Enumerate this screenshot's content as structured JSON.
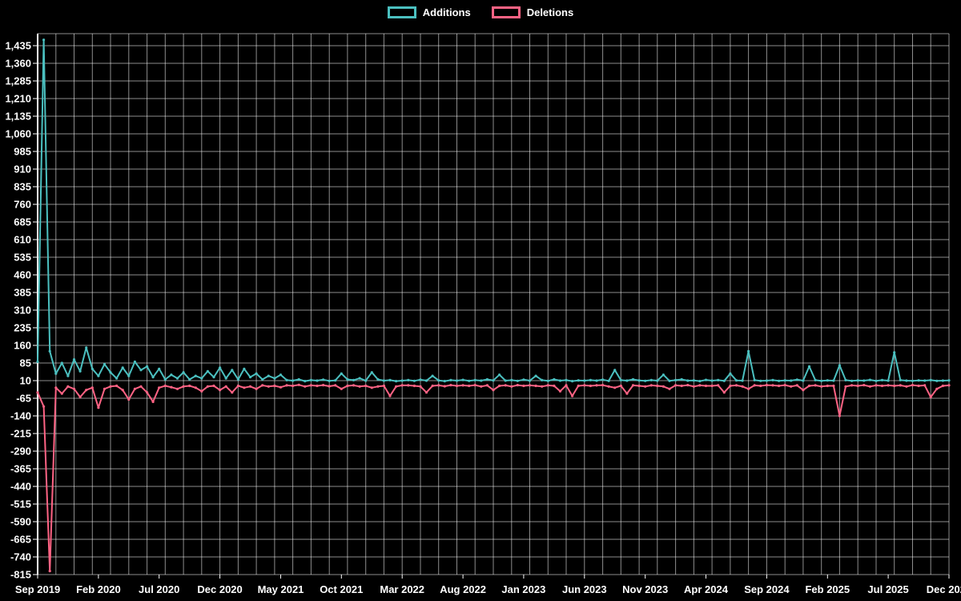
{
  "chart_data": {
    "type": "line",
    "title": "",
    "legend_position": "top",
    "background": "#000000",
    "text_color": "#ffffff",
    "grid": {
      "show": true,
      "color": "rgba(255,255,255,0.55)",
      "vline_step_months": 1.5
    },
    "x_axis": {
      "tick_labels": [
        "Sep 2019",
        "Feb 2020",
        "Jul 2020",
        "Dec 2020",
        "May 2021",
        "Oct 2021",
        "Mar 2022",
        "Aug 2022",
        "Jan 2023",
        "Jun 2023",
        "Nov 2023",
        "Apr 2024",
        "Sep 2024",
        "Feb 2025",
        "Jul 2025",
        "Dec 2025"
      ],
      "tick_spacing_months": 5
    },
    "y_axis": {
      "tick_values": [
        1435,
        1360,
        1285,
        1210,
        1135,
        1060,
        985,
        910,
        835,
        760,
        685,
        610,
        535,
        460,
        385,
        310,
        235,
        160,
        85,
        10,
        -65,
        -140,
        -215,
        -290,
        -365,
        -440,
        -515,
        -590,
        -665,
        -740,
        -815
      ],
      "tick_step": 75
    },
    "x_months": {
      "start": 0,
      "step_months": 0.5,
      "count": 151
    },
    "series": [
      {
        "name": "Additions",
        "color": "#4bc0c0",
        "values": [
          90,
          1460,
          135,
          40,
          85,
          30,
          100,
          50,
          150,
          60,
          30,
          80,
          45,
          20,
          65,
          30,
          90,
          55,
          70,
          25,
          60,
          15,
          35,
          20,
          45,
          15,
          30,
          20,
          50,
          25,
          65,
          20,
          55,
          15,
          60,
          25,
          40,
          15,
          30,
          20,
          35,
          12,
          10,
          15,
          8,
          12,
          10,
          14,
          9,
          11,
          40,
          15,
          12,
          20,
          10,
          45,
          15,
          10,
          12,
          8,
          10,
          12,
          9,
          14,
          10,
          30,
          11,
          8,
          12,
          10,
          13,
          9,
          12,
          10,
          15,
          11,
          35,
          10,
          12,
          9,
          14,
          10,
          30,
          12,
          9,
          15,
          10,
          12,
          8,
          11,
          10,
          12,
          10,
          14,
          9,
          55,
          12,
          10,
          15,
          11,
          9,
          12,
          10,
          35,
          9,
          12,
          15,
          10,
          11,
          8,
          13,
          10,
          12,
          9,
          40,
          11,
          10,
          135,
          12,
          9,
          10,
          12,
          9,
          11,
          10,
          14,
          10,
          70,
          12,
          9,
          11,
          10,
          75,
          12,
          9,
          11,
          10,
          13,
          9,
          12,
          10,
          130,
          12,
          10,
          9,
          11,
          10,
          12,
          9,
          10,
          11
        ]
      },
      {
        "name": "Deletions",
        "color": "#ff6384",
        "values": [
          -40,
          -100,
          -800,
          -20,
          -45,
          -15,
          -25,
          -60,
          -30,
          -20,
          -105,
          -25,
          -15,
          -12,
          -30,
          -70,
          -25,
          -15,
          -40,
          -80,
          -20,
          -12,
          -18,
          -25,
          -15,
          -12,
          -20,
          -35,
          -15,
          -12,
          -30,
          -15,
          -40,
          -12,
          -20,
          -15,
          -25,
          -10,
          -15,
          -12,
          -18,
          -10,
          -12,
          -8,
          -15,
          -10,
          -12,
          -9,
          -14,
          -10,
          -25,
          -12,
          -10,
          -15,
          -12,
          -20,
          -15,
          -12,
          -55,
          -15,
          -10,
          -10,
          -12,
          -15,
          -40,
          -12,
          -10,
          -14,
          -9,
          -12,
          -10,
          -12,
          -9,
          -15,
          -10,
          -30,
          -12,
          -10,
          -15,
          -9,
          -12,
          -10,
          -12,
          -15,
          -10,
          -12,
          -35,
          -10,
          -55,
          -12,
          -10,
          -12,
          -10,
          -9,
          -15,
          -20,
          -12,
          -45,
          -10,
          -12,
          -15,
          -10,
          -12,
          -15,
          -25,
          -10,
          -12,
          -9,
          -15,
          -10,
          -12,
          -12,
          -10,
          -40,
          -12,
          -10,
          -15,
          -25,
          -10,
          -12,
          -9,
          -10,
          -12,
          -9,
          -15,
          -10,
          -30,
          -12,
          -10,
          -15,
          -12,
          -12,
          -140,
          -15,
          -10,
          -12,
          -9,
          -15,
          -10,
          -12,
          -10,
          -12,
          -10,
          -15,
          -9,
          -12,
          -10,
          -60,
          -25,
          -12,
          -10
        ]
      }
    ]
  }
}
